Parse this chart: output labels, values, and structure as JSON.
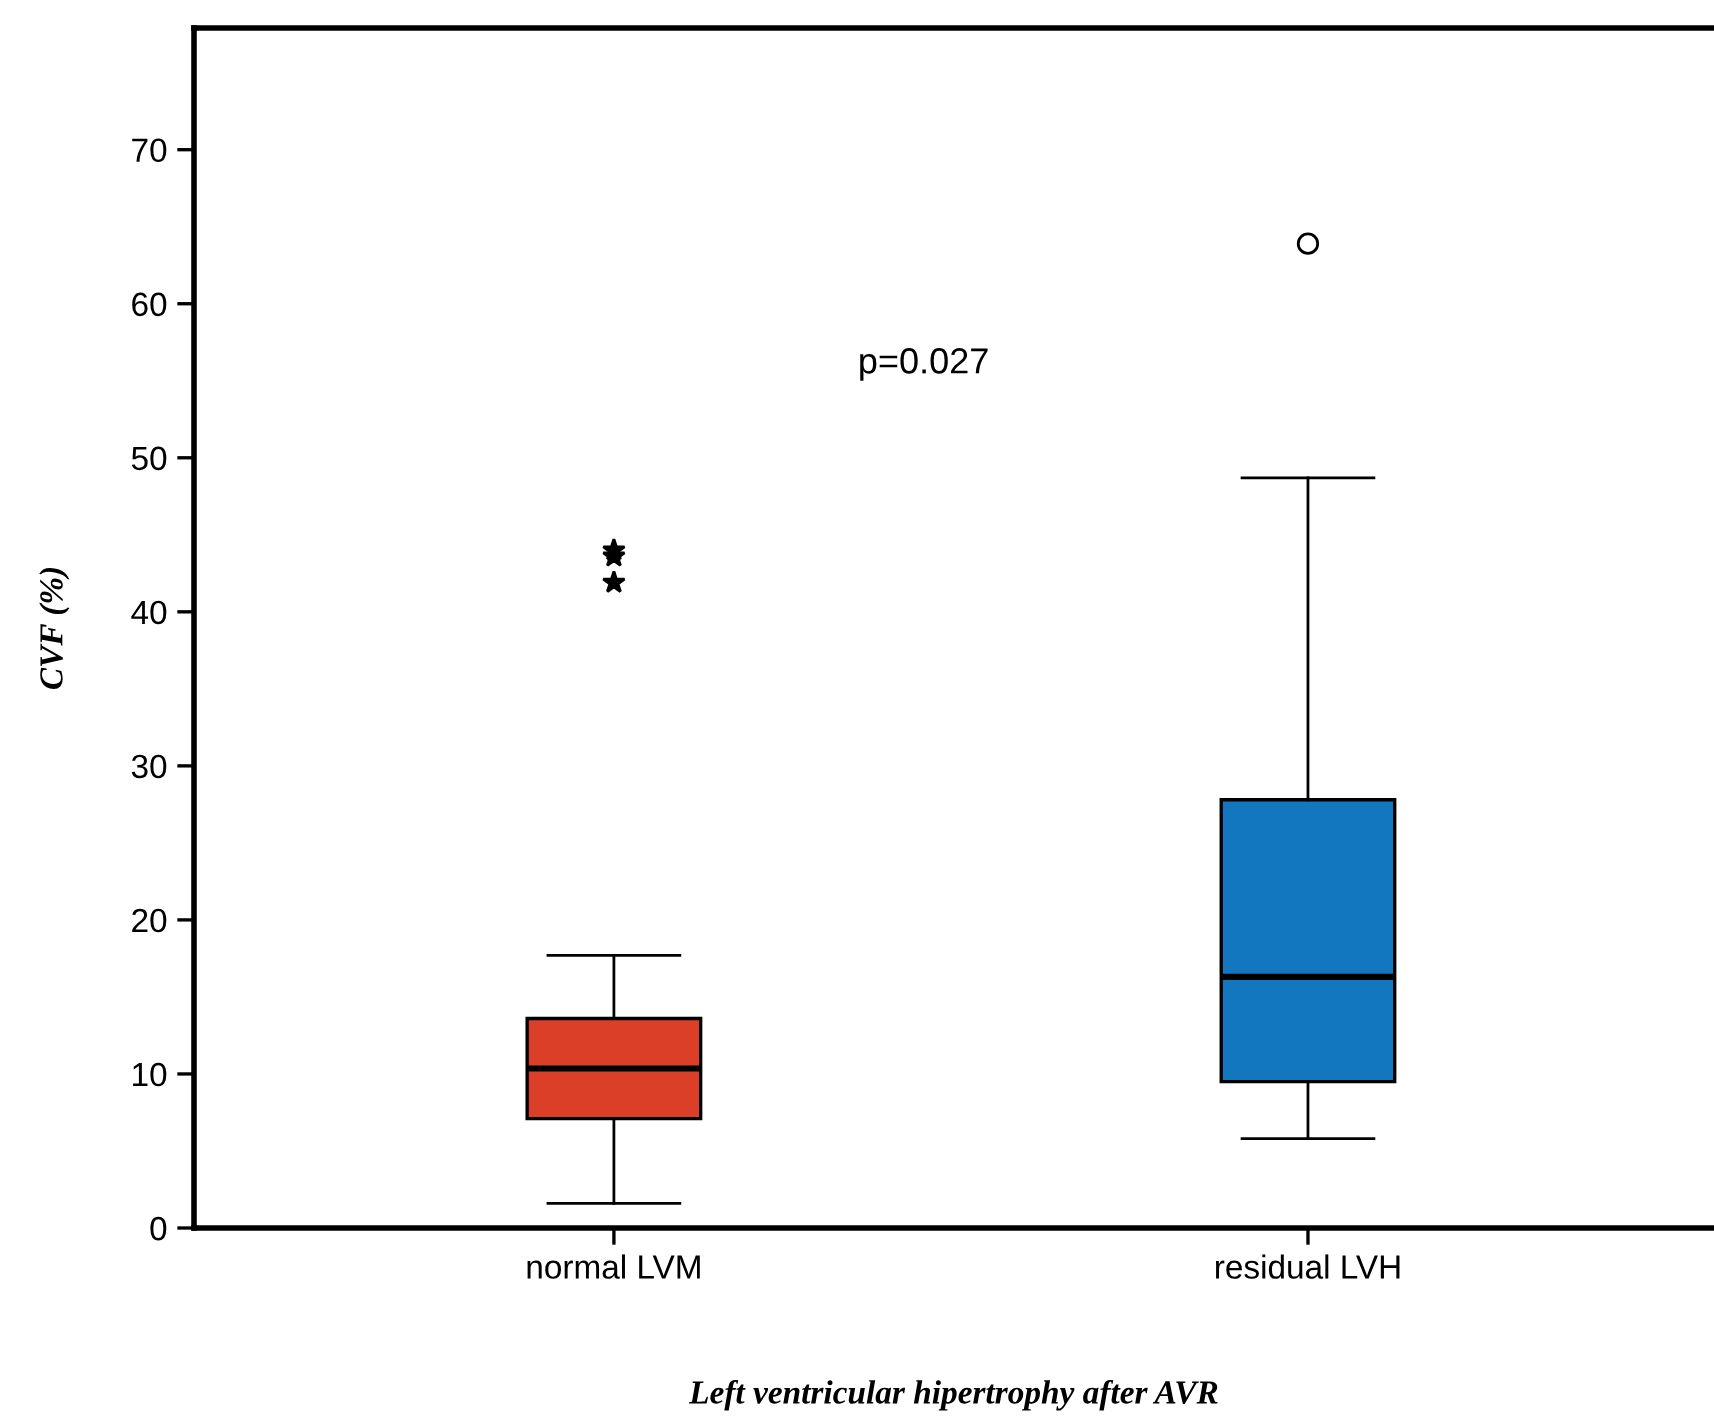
{
  "chart_data": {
    "type": "box",
    "xlabel": "Left ventricular hipertrophy after AVR",
    "ylabel": "CVF (%)",
    "categories": [
      "normal LVM",
      "residual LVH"
    ],
    "ylim": [
      0,
      77.9
    ],
    "yticks": [
      0,
      10,
      20,
      30,
      40,
      50,
      60,
      70
    ],
    "grid": false,
    "annotations": [
      "p=0.027"
    ],
    "series": [
      {
        "color": "#dc3f28",
        "marker": "star",
        "boxes": [
          {
            "low": 1.6,
            "q1": 7.1,
            "median": 10.35,
            "q3": 13.6,
            "high": 17.7,
            "outliers": [
              44.0,
              43.6,
              41.9
            ]
          },
          null
        ]
      },
      {
        "color": "#1277bf",
        "marker": "circle",
        "boxes": [
          null,
          {
            "low": 5.8,
            "q1": 9.5,
            "median": 16.3,
            "q3": 27.8,
            "high": 48.7,
            "outliers": [
              63.9
            ]
          }
        ]
      }
    ]
  }
}
